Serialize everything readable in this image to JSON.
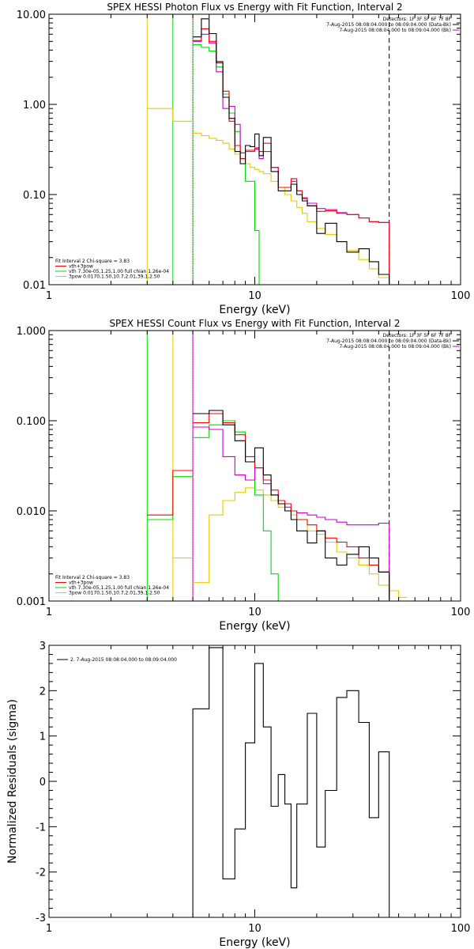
{
  "colors": {
    "data": "#000000",
    "total": "#ff0000",
    "vth": "#00dd00",
    "bpow": "#e8c800",
    "bk": "#cc00cc",
    "frame": "#000000"
  },
  "chart_data": [
    {
      "type": "line",
      "title": "SPEX HESSI Photon Flux vs Energy with Fit Function, Interval 2",
      "xlabel": "Energy (keV)",
      "ylabel": "",
      "xscale": "log",
      "yscale": "log",
      "xlim": [
        1,
        100
      ],
      "ylim": [
        0.01,
        10
      ],
      "xticks": [
        "1",
        "10",
        "100"
      ],
      "yticks": [
        "0.01",
        "0.10",
        "1.00",
        "10.00"
      ],
      "header": [
        "Detectors: 1F 3F 5F 6F 7F 8F",
        "7-Aug-2015 08:08:04.000 to 08:09:04.000 (Data-Bk)",
        "7-Aug-2015 08:08:04.000 to 08:09:04.000 (Bk)"
      ],
      "legend": [
        "Fit Interval 2   Chi-square = 3.83",
        "vth+3pow",
        "vth 7.30e-05,1.25,1.00  full chian 1.26e-04",
        "3pow 0.0170,1.50,10.7,2.01,39.1,2.50"
      ],
      "edges": [
        5.0,
        5.5,
        6.0,
        6.5,
        7.0,
        7.5,
        8.0,
        8.5,
        9.0,
        9.5,
        10.0,
        10.5,
        11.0,
        12.0,
        13.0,
        14.0,
        15.0,
        16.0,
        17.0,
        18.0,
        20.0,
        22.0,
        25.0,
        28.0,
        32.0,
        36.0,
        40.0,
        45.0
      ],
      "series": [
        {
          "key": "data",
          "values": [
            5.6,
            8.9,
            6.1,
            2.9,
            1.2,
            0.7,
            0.3,
            0.22,
            0.35,
            0.34,
            0.47,
            0.27,
            0.43,
            0.18,
            0.11,
            0.11,
            0.13,
            0.1,
            0.085,
            0.075,
            0.037,
            0.048,
            0.03,
            0.023,
            0.025,
            0.018,
            0.013
          ]
        },
        {
          "key": "total",
          "values": [
            5.1,
            6.9,
            5.0,
            3.0,
            1.4,
            0.65,
            0.35,
            0.25,
            0.31,
            0.31,
            0.33,
            0.3,
            0.37,
            0.2,
            0.12,
            0.12,
            0.15,
            0.11,
            0.09,
            0.075,
            0.065,
            0.066,
            0.062,
            0.06,
            0.055,
            0.05,
            0.049
          ]
        },
        {
          "key": "bk",
          "values": [
            5.0,
            6.0,
            4.8,
            2.3,
            0.9,
            0.95,
            0.6,
            0.29,
            0.3,
            0.3,
            0.32,
            0.25,
            0.3,
            0.2,
            0.12,
            0.12,
            0.14,
            0.11,
            0.092,
            0.08,
            0.07,
            0.068,
            0.063,
            0.06,
            0.055,
            0.05,
            0.049
          ]
        },
        {
          "key": "vth",
          "values": [
            4.6,
            4.3,
            3.9,
            2.6,
            1.3,
            0.8,
            0.5,
            0.29,
            0.14,
            0.14,
            0.04,
            0.01,
            0.01,
            0.01,
            0.01,
            0.01,
            0.01,
            0.01,
            0.01,
            0.01,
            0.01,
            0.01,
            0.01,
            0.01,
            0.01,
            0.01,
            0.01
          ]
        },
        {
          "key": "bpow",
          "values": [
            0.48,
            0.45,
            0.42,
            0.4,
            0.37,
            0.32,
            0.28,
            0.25,
            0.22,
            0.2,
            0.19,
            0.18,
            0.17,
            0.14,
            0.12,
            0.1,
            0.085,
            0.072,
            0.062,
            0.05,
            0.042,
            0.036,
            0.03,
            0.024,
            0.019,
            0.015,
            0.012
          ]
        },
        {
          "key": "pre",
          "edges": [
            3,
            4,
            5
          ],
          "values": [
            0.9,
            0.65
          ],
          "color": "bpow"
        }
      ],
      "vlines": [
        {
          "x": 3.0,
          "color": "bpow",
          "style": "solid"
        },
        {
          "x": 4.0,
          "color": "vth",
          "style": "solid"
        },
        {
          "x": 5.0,
          "color": "vth",
          "style": "solid"
        },
        {
          "x": 5.0,
          "color": "bk",
          "style": "dotted"
        },
        {
          "x": 45.0,
          "color": "frame",
          "style": "dashed"
        }
      ]
    },
    {
      "type": "line",
      "title": "SPEX HESSI Count Flux vs Energy with Fit Function, Interval 2",
      "xlabel": "Energy (keV)",
      "ylabel": "",
      "xscale": "log",
      "yscale": "log",
      "xlim": [
        1,
        100
      ],
      "ylim": [
        0.001,
        1
      ],
      "xticks": [
        "1",
        "10",
        "100"
      ],
      "yticks": [
        "0.001",
        "0.010",
        "0.100",
        "1.000"
      ],
      "header": [
        "Detectors: 1F 3F 5F 6F 7F 8F",
        "7-Aug-2015 08:08:04.000 to 08:09:04.000 (Data-Bk)",
        "7-Aug-2015 08:08:04.000 to 08:09:04.000 (Bk)"
      ],
      "legend": [
        "Fit Interval 2   Chi-square = 3.83",
        "vth+3pow",
        "vth 7.30e-05,1.25,1.00  full chian 1.26e-04",
        "3pow 0.0170,1.50,10.7,2.01,39.1,2.50"
      ],
      "edges": [
        5.0,
        6.0,
        7.0,
        8.0,
        9.0,
        10.0,
        11.0,
        12.0,
        13.0,
        14.0,
        15.0,
        16.0,
        18.0,
        20.0,
        22.0,
        25.0,
        28.0,
        32.0,
        36.0,
        40.0,
        45.0
      ],
      "series": [
        {
          "key": "data",
          "values": [
            0.12,
            0.13,
            0.09,
            0.06,
            0.035,
            0.05,
            0.025,
            0.015,
            0.012,
            0.01,
            0.008,
            0.006,
            0.0044,
            0.006,
            0.003,
            0.0025,
            0.0033,
            0.004,
            0.003,
            0.0021
          ]
        },
        {
          "key": "total",
          "values": [
            0.095,
            0.12,
            0.095,
            0.07,
            0.04,
            0.03,
            0.022,
            0.017,
            0.013,
            0.012,
            0.01,
            0.008,
            0.007,
            0.006,
            0.005,
            0.0045,
            0.004,
            0.003,
            0.0025,
            0.0021
          ]
        },
        {
          "key": "bk",
          "values": [
            0.085,
            0.08,
            0.04,
            0.025,
            0.022,
            0.03,
            0.02,
            0.015,
            0.012,
            0.011,
            0.01,
            0.0095,
            0.009,
            0.0085,
            0.008,
            0.0075,
            0.007,
            0.007,
            0.007,
            0.0073
          ]
        },
        {
          "key": "vth",
          "values": [
            0.065,
            0.09,
            0.1,
            0.075,
            0.035,
            0.015,
            0.006,
            0.002,
            0.001,
            0.001,
            0.001,
            0.001,
            0.001,
            0.001,
            0.001,
            0.001,
            0.001,
            0.001,
            0.001,
            0.001
          ]
        },
        {
          "key": "bpow",
          "values": [
            0.0016,
            0.009,
            0.013,
            0.016,
            0.018,
            0.017,
            0.015,
            0.013,
            0.011,
            0.01,
            0.009,
            0.008,
            0.006,
            0.0055,
            0.0045,
            0.0035,
            0.003,
            0.0025,
            0.002,
            0.0015
          ]
        },
        {
          "key": "red-pre",
          "edges": [
            3,
            4,
            5
          ],
          "values": [
            0.009,
            0.028
          ],
          "color": "total"
        },
        {
          "key": "green-pre",
          "edges": [
            3,
            4,
            5
          ],
          "values": [
            0.008,
            0.024
          ],
          "color": "vth"
        },
        {
          "key": "yellow-pre",
          "edges": [
            4,
            5
          ],
          "values": [
            0.003
          ],
          "color": "bpow"
        },
        {
          "key": "yellow-tail",
          "edges": [
            45,
            50,
            55
          ],
          "values": [
            0.0013,
            0.0011
          ],
          "color": "bpow"
        }
      ],
      "vlines": [
        {
          "x": 3.0,
          "color": "vth",
          "style": "solid"
        },
        {
          "x": 4.0,
          "color": "bpow",
          "style": "solid"
        },
        {
          "x": 5.0,
          "color": "frame",
          "style": "dotted"
        },
        {
          "x": 5.0,
          "color": "bk",
          "style": "solid"
        },
        {
          "x": 45.0,
          "color": "frame",
          "style": "dashed"
        }
      ]
    },
    {
      "type": "line",
      "title": "",
      "xlabel": "Energy (keV)",
      "ylabel": "Normalized Residuals (sigma)",
      "xscale": "log",
      "yscale": "linear",
      "xlim": [
        1,
        100
      ],
      "ylim": [
        -3,
        3
      ],
      "xticks": [
        "1",
        "10",
        "100"
      ],
      "yticks": [
        "-3",
        "-2",
        "-1",
        "0",
        "1",
        "2",
        "3"
      ],
      "legend": [
        "2.  7-Aug-2015 08:08:04.000 to 08:09:04.000"
      ],
      "edges": [
        5.0,
        6.0,
        7.0,
        8.0,
        9.0,
        10.0,
        11.0,
        12.0,
        13.0,
        14.0,
        15.0,
        16.0,
        18.0,
        20.0,
        22.0,
        25.0,
        28.0,
        32.0,
        36.0,
        40.0,
        45.0
      ],
      "series": [
        {
          "key": "data",
          "values": [
            1.6,
            2.95,
            -2.15,
            -1.05,
            0.85,
            2.6,
            1.2,
            -0.55,
            0.15,
            -0.5,
            -2.35,
            -0.5,
            1.5,
            -1.45,
            -0.2,
            1.85,
            2.0,
            1.3,
            -0.8,
            0.65
          ]
        }
      ],
      "vlines": []
    }
  ]
}
